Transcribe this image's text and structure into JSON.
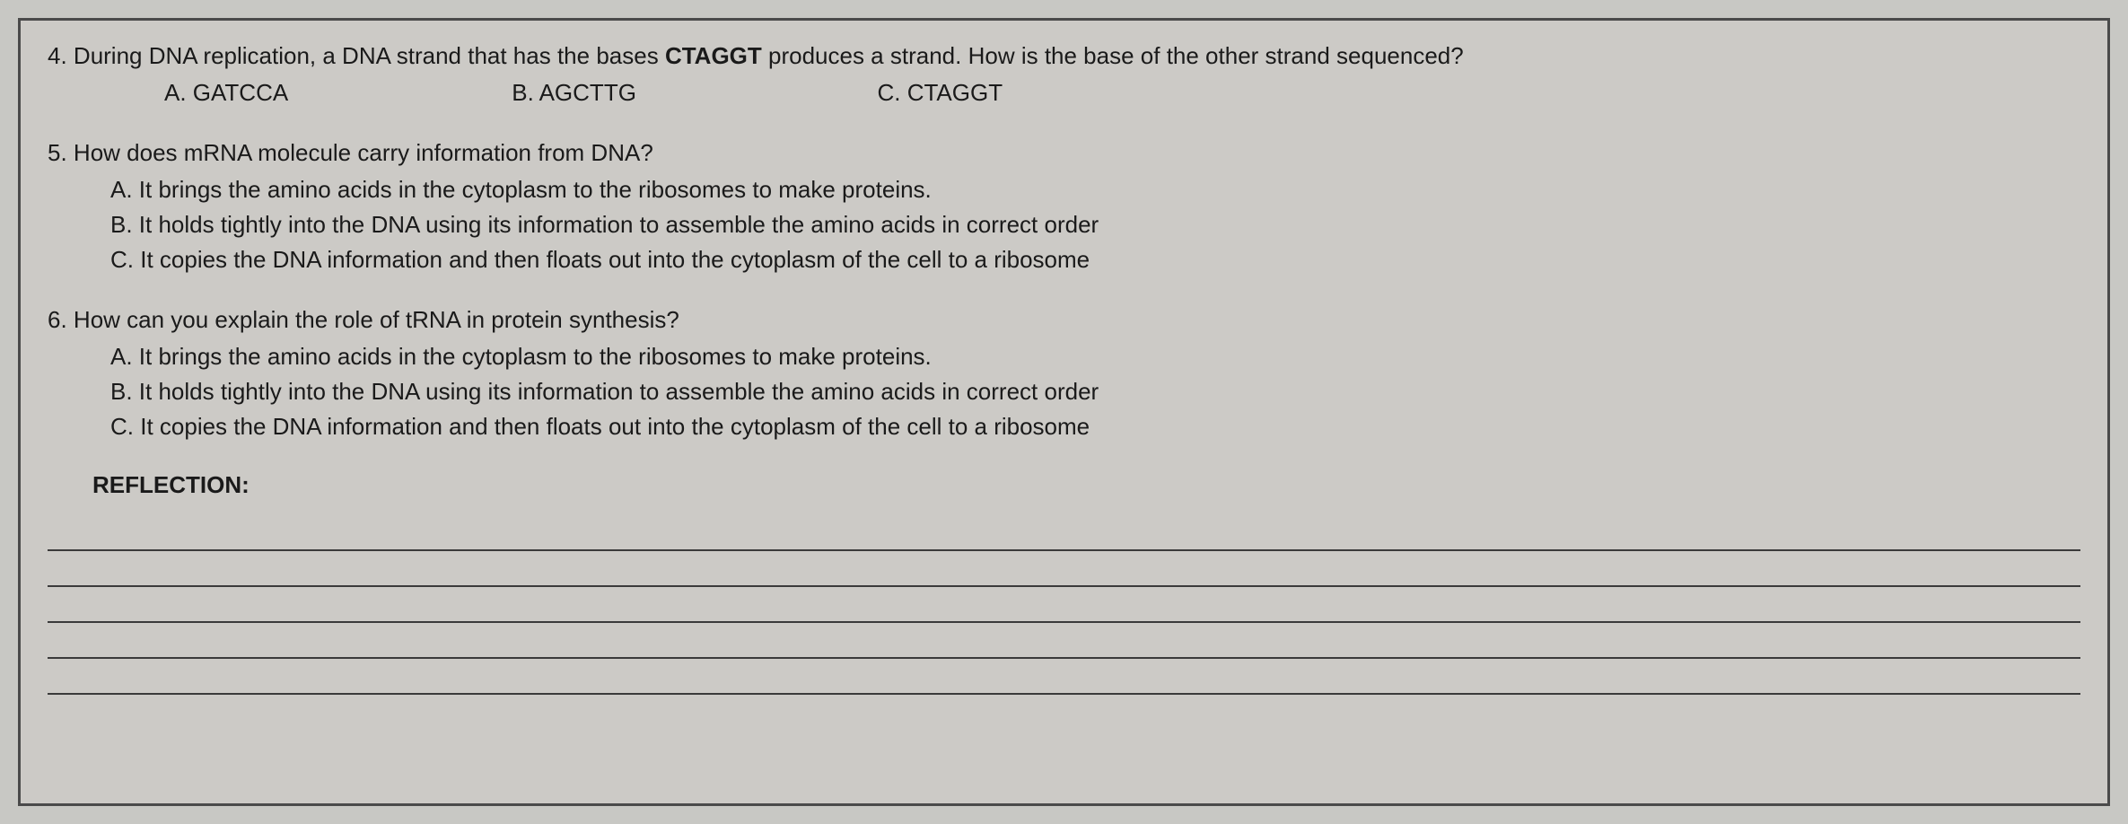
{
  "page": {
    "background_color": "#c8c8c4",
    "container_bg": "#cccac6",
    "border_color": "#4a4a4a",
    "text_color": "#1a1a1a",
    "line_color": "#3a3a3a",
    "font_size": 26
  },
  "q4": {
    "number": "4.",
    "text_before": " During DNA replication, a DNA strand that has the bases ",
    "bold_text": "CTAGGT",
    "text_after": " produces a strand. How is the base of the other strand sequenced?",
    "option_a": "A. GATCCA",
    "option_b": "B. AGCTTG",
    "option_c": "C. CTAGGT"
  },
  "q5": {
    "number": "5.",
    "text": " How does mRNA molecule carry information from DNA?",
    "option_a": "A. It brings the amino acids in the cytoplasm to the ribosomes to make proteins.",
    "option_b": "B. It holds tightly into the DNA using its information to assemble the amino acids in correct order",
    "option_c": "C. It copies the DNA information and then floats out into the cytoplasm of the cell to a ribosome"
  },
  "q6": {
    "number": "6.",
    "text": " How can you explain the role of tRNA in protein synthesis?",
    "option_a": "A. It brings the amino acids in the cytoplasm to the ribosomes to make proteins.",
    "option_b": "B. It holds tightly into the DNA using its information to assemble the amino acids in correct order",
    "option_c": "C. It copies the DNA information and then floats out into the cytoplasm of the cell to a ribosome"
  },
  "reflection": {
    "label": "REFLECTION:",
    "line_count": 5
  }
}
